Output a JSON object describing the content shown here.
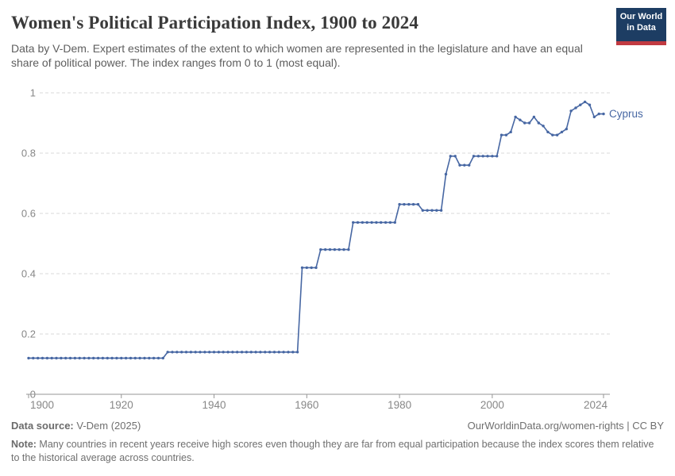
{
  "header": {
    "title": "Women's Political Participation Index, 1900 to 2024",
    "subtitle": "Data by V-Dem. Expert estimates of the extent to which women are represented in the legislature and have an equal share of political power. The index ranges from 0 to 1 (most equal)."
  },
  "logo": {
    "line1": "Our World",
    "line2": "in Data",
    "bg_color": "#1d3d63",
    "bar_color": "#c13a41"
  },
  "chart_data": {
    "type": "line",
    "title": "Women's Political Participation Index, 1900 to 2024",
    "xlabel": "",
    "ylabel": "",
    "x_range": [
      1900,
      2024
    ],
    "ylim": [
      0,
      1
    ],
    "x_ticks": [
      1900,
      1920,
      1940,
      1960,
      1980,
      2000,
      2024
    ],
    "y_ticks": [
      0,
      0.2,
      0.4,
      0.6,
      0.8,
      1
    ],
    "grid": "horizontal-dashed",
    "legend_position": "end-of-line-label",
    "grid_color": "#d9d9d9",
    "axis_color": "#969696",
    "tick_label_color": "#878787",
    "series": [
      {
        "name": "Cyprus",
        "color": "#4767a3",
        "values": [
          0.12,
          0.12,
          0.12,
          0.12,
          0.12,
          0.12,
          0.12,
          0.12,
          0.12,
          0.12,
          0.12,
          0.12,
          0.12,
          0.12,
          0.12,
          0.12,
          0.12,
          0.12,
          0.12,
          0.12,
          0.12,
          0.12,
          0.12,
          0.12,
          0.12,
          0.12,
          0.12,
          0.12,
          0.12,
          0.12,
          0.14,
          0.14,
          0.14,
          0.14,
          0.14,
          0.14,
          0.14,
          0.14,
          0.14,
          0.14,
          0.14,
          0.14,
          0.14,
          0.14,
          0.14,
          0.14,
          0.14,
          0.14,
          0.14,
          0.14,
          0.14,
          0.14,
          0.14,
          0.14,
          0.14,
          0.14,
          0.14,
          0.14,
          0.14,
          0.42,
          0.42,
          0.42,
          0.42,
          0.48,
          0.48,
          0.48,
          0.48,
          0.48,
          0.48,
          0.48,
          0.57,
          0.57,
          0.57,
          0.57,
          0.57,
          0.57,
          0.57,
          0.57,
          0.57,
          0.57,
          0.63,
          0.63,
          0.63,
          0.63,
          0.63,
          0.61,
          0.61,
          0.61,
          0.61,
          0.61,
          0.73,
          0.79,
          0.79,
          0.76,
          0.76,
          0.76,
          0.79,
          0.79,
          0.79,
          0.79,
          0.79,
          0.79,
          0.86,
          0.86,
          0.87,
          0.92,
          0.91,
          0.9,
          0.9,
          0.92,
          0.9,
          0.89,
          0.87,
          0.86,
          0.86,
          0.87,
          0.88,
          0.94,
          0.95,
          0.96,
          0.97,
          0.96,
          0.92,
          0.93,
          0.93
        ]
      }
    ]
  },
  "footer": {
    "source_label": "Data source:",
    "source_value": " V-Dem (2025)",
    "link_text": "OurWorldinData.org/women-rights | CC BY",
    "note_label": "Note:",
    "note_value": " Many countries in recent years receive high scores even though they are far from equal participation because the index scores them relative to the historical average across countries."
  }
}
